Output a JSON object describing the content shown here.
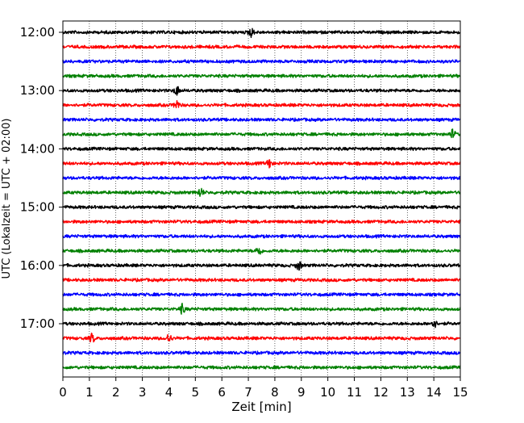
{
  "chart_data": {
    "type": "line",
    "subtype": "helicorder",
    "xlabel": "Zeit  [min]",
    "ylabel": "UTC (Lokalzeit = UTC + 02:00)",
    "xlim": [
      0,
      15
    ],
    "x_ticks": [
      "0",
      "1",
      "2",
      "3",
      "4",
      "5",
      "6",
      "7",
      "8",
      "9",
      "10",
      "11",
      "12",
      "13",
      "14",
      "15"
    ],
    "grid": "vertical dotted at each minute",
    "row_interval_minutes": 15,
    "first_row": "12:00",
    "y_ticks": [
      {
        "label": "12:00",
        "row": 0
      },
      {
        "label": "13:00",
        "row": 4
      },
      {
        "label": "14:00",
        "row": 8
      },
      {
        "label": "15:00",
        "row": 12
      },
      {
        "label": "16:00",
        "row": 16
      },
      {
        "label": "17:00",
        "row": 20
      }
    ],
    "color_cycle": [
      "#000000",
      "#ff0000",
      "#0000ff",
      "#008000"
    ],
    "traces": [
      {
        "row": 0,
        "color": "#000000"
      },
      {
        "row": 1,
        "color": "#ff0000"
      },
      {
        "row": 2,
        "color": "#0000ff"
      },
      {
        "row": 3,
        "color": "#008000"
      },
      {
        "row": 4,
        "color": "#000000"
      },
      {
        "row": 5,
        "color": "#ff0000"
      },
      {
        "row": 6,
        "color": "#0000ff"
      },
      {
        "row": 7,
        "color": "#008000"
      },
      {
        "row": 8,
        "color": "#000000"
      },
      {
        "row": 9,
        "color": "#ff0000"
      },
      {
        "row": 10,
        "color": "#0000ff"
      },
      {
        "row": 11,
        "color": "#008000"
      },
      {
        "row": 12,
        "color": "#000000"
      },
      {
        "row": 13,
        "color": "#ff0000"
      },
      {
        "row": 14,
        "color": "#0000ff"
      },
      {
        "row": 15,
        "color": "#008000"
      },
      {
        "row": 16,
        "color": "#000000"
      },
      {
        "row": 17,
        "color": "#ff0000"
      },
      {
        "row": 18,
        "color": "#0000ff"
      },
      {
        "row": 19,
        "color": "#008000"
      },
      {
        "row": 20,
        "color": "#000000"
      },
      {
        "row": 21,
        "color": "#ff0000"
      },
      {
        "row": 22,
        "color": "#0000ff"
      },
      {
        "row": 23,
        "color": "#008000"
      }
    ],
    "events": [
      {
        "row": 0,
        "minute": 7.1
      },
      {
        "row": 4,
        "minute": 4.3
      },
      {
        "row": 5,
        "minute": 4.3
      },
      {
        "row": 7,
        "minute": 14.7
      },
      {
        "row": 9,
        "minute": 7.8
      },
      {
        "row": 11,
        "minute": 5.2
      },
      {
        "row": 15,
        "minute": 7.4
      },
      {
        "row": 16,
        "minute": 8.9
      },
      {
        "row": 19,
        "minute": 4.5
      },
      {
        "row": 20,
        "minute": 14.0
      },
      {
        "row": 21,
        "minute": 1.1
      },
      {
        "row": 21,
        "minute": 4.0
      }
    ]
  }
}
